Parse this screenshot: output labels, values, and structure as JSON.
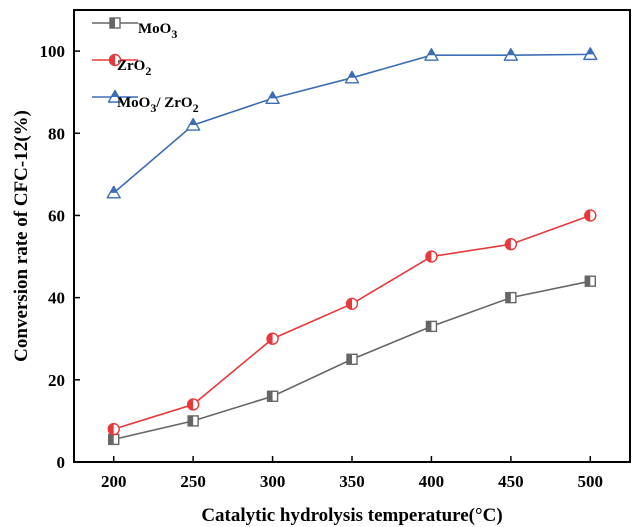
{
  "chart_data": {
    "type": "line",
    "title": "",
    "xlabel": "Catalytic hydrolysis temperature(°C)",
    "ylabel": "Conversion rate of CFC-12(%)",
    "xlim": [
      175,
      525
    ],
    "ylim": [
      0,
      110
    ],
    "x": [
      200,
      250,
      300,
      350,
      400,
      450,
      500
    ],
    "x_ticks": [
      200,
      250,
      300,
      350,
      400,
      450,
      500
    ],
    "y_ticks": [
      0,
      20,
      40,
      60,
      80,
      100
    ],
    "grid": false,
    "legend_position": "top-left",
    "series": [
      {
        "name_base": "MoO",
        "name_sub": "3",
        "marker": "square-half",
        "color": "#666666",
        "values": [
          5.5,
          10,
          16,
          25,
          33,
          40,
          44
        ]
      },
      {
        "name_base": "ZrO",
        "name_sub": "2",
        "marker": "circle-half",
        "color": "#e8383b",
        "values": [
          8,
          14,
          30,
          38.5,
          50,
          53,
          60
        ]
      },
      {
        "name_base": "MoO",
        "name_sub": "3",
        "name_mid": "/ ZrO",
        "name_sub2": "2",
        "marker": "triangle-half",
        "color": "#3d6db5",
        "values": [
          65.5,
          82,
          88.5,
          93.5,
          99,
          99,
          99.2
        ]
      }
    ]
  }
}
